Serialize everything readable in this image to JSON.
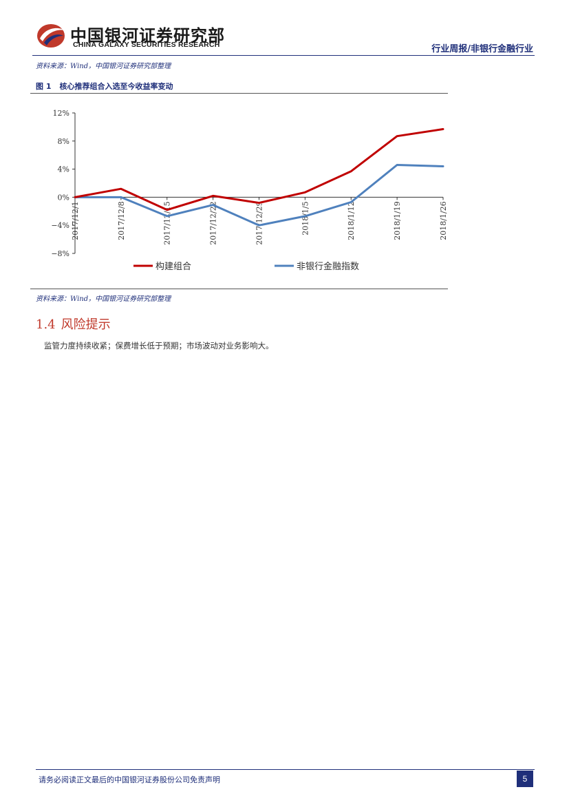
{
  "header": {
    "logo_cn": "中国银河证券研究部",
    "logo_en": "CHINA GALAXY SECURITIES RESEARCH",
    "report_type": "行业周报/非银行金融行业",
    "brand_colors": {
      "navy": "#1f2f7a",
      "red": "#c0392b"
    }
  },
  "source_top": "资料来源：Wind，中国银河证券研究部整理",
  "figure": {
    "number": "图 1",
    "title": "核心推荐组合入选至今收益率变动"
  },
  "chart_data": {
    "type": "line",
    "x": [
      "2017/12/1",
      "2017/12/8",
      "2017/12/15",
      "2017/12/22",
      "2017/12/29",
      "2018/1/5",
      "2018/1/12",
      "2018/1/19",
      "2018/1/26"
    ],
    "series": [
      {
        "name": "构建组合",
        "color": "#c00000",
        "values": [
          0.0,
          1.2,
          -1.8,
          0.2,
          -0.8,
          0.7,
          3.7,
          8.7,
          9.7
        ]
      },
      {
        "name": "非银行金融指数",
        "color": "#4f81bd",
        "values": [
          0.0,
          0.0,
          -2.7,
          -1.1,
          -4.0,
          -2.7,
          -0.7,
          4.6,
          4.4
        ]
      }
    ],
    "ylim": [
      -8,
      12
    ],
    "yticks": [
      "12%",
      "8%",
      "4%",
      "0%",
      "−4%",
      "−8%"
    ],
    "ytick_values": [
      12,
      8,
      4,
      0,
      -4,
      -8
    ],
    "legend_position": "bottom",
    "grid": false
  },
  "source_bottom": "资料来源：Wind，中国银河证券研究部整理",
  "section": {
    "number": "1.4",
    "title": "风险提示",
    "text": "监管力度持续收紧；保费增长低于预期；市场波动对业务影响大。"
  },
  "footer": {
    "disclaimer": "请务必阅读正文最后的中国银河证券股份公司免责声明",
    "page": "5"
  }
}
